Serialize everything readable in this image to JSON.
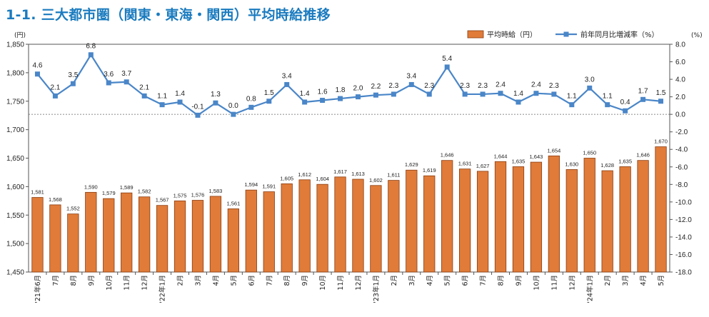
{
  "title": "1-1. 三大都市圏（関東・東海・関西）平均時給推移",
  "chart_data": {
    "type": "bar+line",
    "categories": [
      "'21年6月",
      "7月",
      "8月",
      "9月",
      "10月",
      "11月",
      "12月",
      "'22年1月",
      "2月",
      "3月",
      "4月",
      "5月",
      "6月",
      "7月",
      "8月",
      "9月",
      "10月",
      "11月",
      "12月",
      "'23年1月",
      "2月",
      "3月",
      "4月",
      "5月",
      "6月",
      "7月",
      "8月",
      "9月",
      "10月",
      "11月",
      "12月",
      "'24年1月",
      "2月",
      "3月",
      "4月",
      "5月"
    ],
    "series": [
      {
        "name": "平均時給（円）",
        "type": "bar",
        "axis": "left",
        "color": "#e07b39",
        "values": [
          1581,
          1568,
          1552,
          1590,
          1579,
          1589,
          1582,
          1567,
          1575,
          1576,
          1583,
          1561,
          1594,
          1591,
          1605,
          1612,
          1604,
          1617,
          1613,
          1602,
          1611,
          1629,
          1619,
          1646,
          1631,
          1627,
          1644,
          1635,
          1643,
          1654,
          1630,
          1650,
          1628,
          1635,
          1646,
          1670
        ],
        "labels": [
          "1,581",
          "1,568",
          "1,552",
          "1,590",
          "1,579",
          "1,589",
          "1,582",
          "1,567",
          "1,575",
          "1,576",
          "1,583",
          "1,561",
          "1,594",
          "1,591",
          "1,605",
          "1,612",
          "1,604",
          "1,617",
          "1,613",
          "1,602",
          "1,611",
          "1,629",
          "1,619",
          "1,646",
          "1,631",
          "1,627",
          "1,644",
          "1,635",
          "1,643",
          "1,654",
          "1,630",
          "1,650",
          "1,628",
          "1,635",
          "1,646",
          "1,670"
        ]
      },
      {
        "name": "前年同月比増減率（%）",
        "type": "line",
        "axis": "right",
        "color": "#4a86c8",
        "values": [
          4.6,
          2.1,
          3.5,
          6.8,
          3.6,
          3.7,
          2.1,
          1.1,
          1.4,
          -0.1,
          1.3,
          0.0,
          0.8,
          1.5,
          3.4,
          1.4,
          1.6,
          1.8,
          2.0,
          2.2,
          2.3,
          3.4,
          2.3,
          5.4,
          2.3,
          2.3,
          2.4,
          1.4,
          2.4,
          2.3,
          1.1,
          3.0,
          1.1,
          0.4,
          1.7,
          1.5
        ],
        "labels": [
          "4.6",
          "2.1",
          "3.5",
          "6.8",
          "3.6",
          "3.7",
          "2.1",
          "1.1",
          "1.4",
          "-0.1",
          "1.3",
          "0.0",
          "0.8",
          "1.5",
          "3.4",
          "1.4",
          "1.6",
          "1.8",
          "2.0",
          "2.2",
          "2.3",
          "3.4",
          "2.3",
          "5.4",
          "2.3",
          "2.3",
          "2.4",
          "1.4",
          "2.4",
          "2.3",
          "1.1",
          "3.0",
          "1.1",
          "0.4",
          "1.7",
          "1.5"
        ]
      }
    ],
    "y_left": {
      "unit": "(円)",
      "range": [
        1450,
        1850
      ],
      "ticks": [
        "1,450",
        "1,500",
        "1,550",
        "1,600",
        "1,650",
        "1,700",
        "1,750",
        "1,800",
        "1,850"
      ]
    },
    "y_right": {
      "unit": "(%)",
      "range": [
        -18,
        8
      ],
      "ticks": [
        "-18.0",
        "-16.0",
        "-14.0",
        "-12.0",
        "-10.0",
        "-8.0",
        "-6.0",
        "-4.0",
        "-2.0",
        "0.0",
        "2.0",
        "4.0",
        "6.0",
        "8.0"
      ]
    },
    "zero_reference_line": true,
    "grid": false,
    "legend_position": "top-right"
  }
}
